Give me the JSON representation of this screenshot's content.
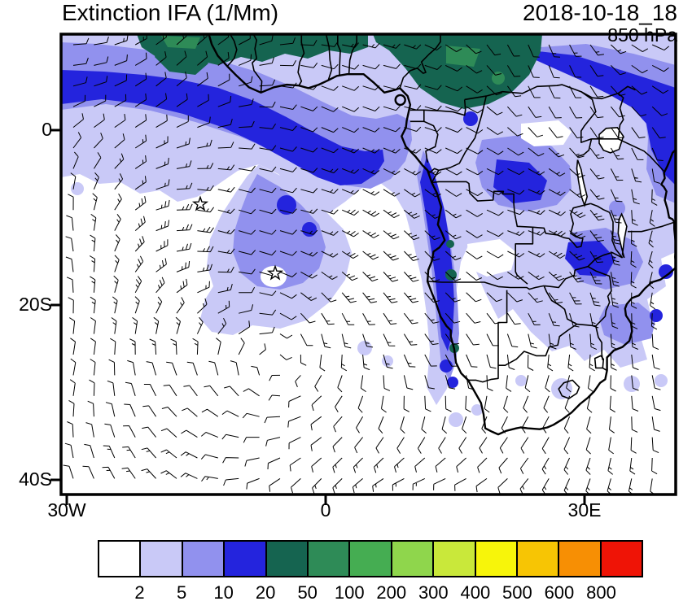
{
  "header": {
    "title": "Extinction IFA (1/Mm)",
    "datetime": "2018-10-18_18",
    "level": "850 hPa"
  },
  "axes": {
    "y_ticks": [
      "0",
      "20S",
      "40S"
    ],
    "x_ticks": [
      "30W",
      "0",
      "30E"
    ]
  },
  "colorbar": {
    "levels": [
      "2",
      "5",
      "10",
      "20",
      "50",
      "100",
      "200",
      "300",
      "400",
      "500",
      "600",
      "800"
    ],
    "colors": [
      "#ffffff",
      "#c9c9f7",
      "#9191ee",
      "#2424dd",
      "#156450",
      "#2e8b57",
      "#45ad52",
      "#8fd64c",
      "#c9e83a",
      "#f7f50a",
      "#f7c504",
      "#f78f04",
      "#ef1406"
    ]
  },
  "chart_data": {
    "type": "heatmap",
    "title": "Extinction IFA (1/Mm)",
    "time_label": "2018-10-18_18",
    "pressure_level": "850 hPa",
    "units": "1/Mm",
    "contour_levels": [
      2,
      5,
      10,
      20,
      50,
      100,
      200,
      300,
      400,
      500,
      600,
      800
    ],
    "x_axis_ticks": [
      "30W",
      "0",
      "30E"
    ],
    "y_axis_ticks": [
      "0",
      "20S",
      "40S"
    ],
    "legend_position": "bottom",
    "overlays": [
      "wind-barbs",
      "coastlines",
      "country-borders",
      "star-markers"
    ],
    "star_markers": 2,
    "field_summary": "Highest extinction (20-100 1/Mm, dark green) along Gulf of Guinea coast and Congo basin; blue band (10-20) across tropical Atlantic and Angola-Namibia coast; light purple plume (2-10) extending southwest over the South Atlantic and over southern Africa north of ~20S; clear (<2) over the subtropical ocean and far south"
  }
}
